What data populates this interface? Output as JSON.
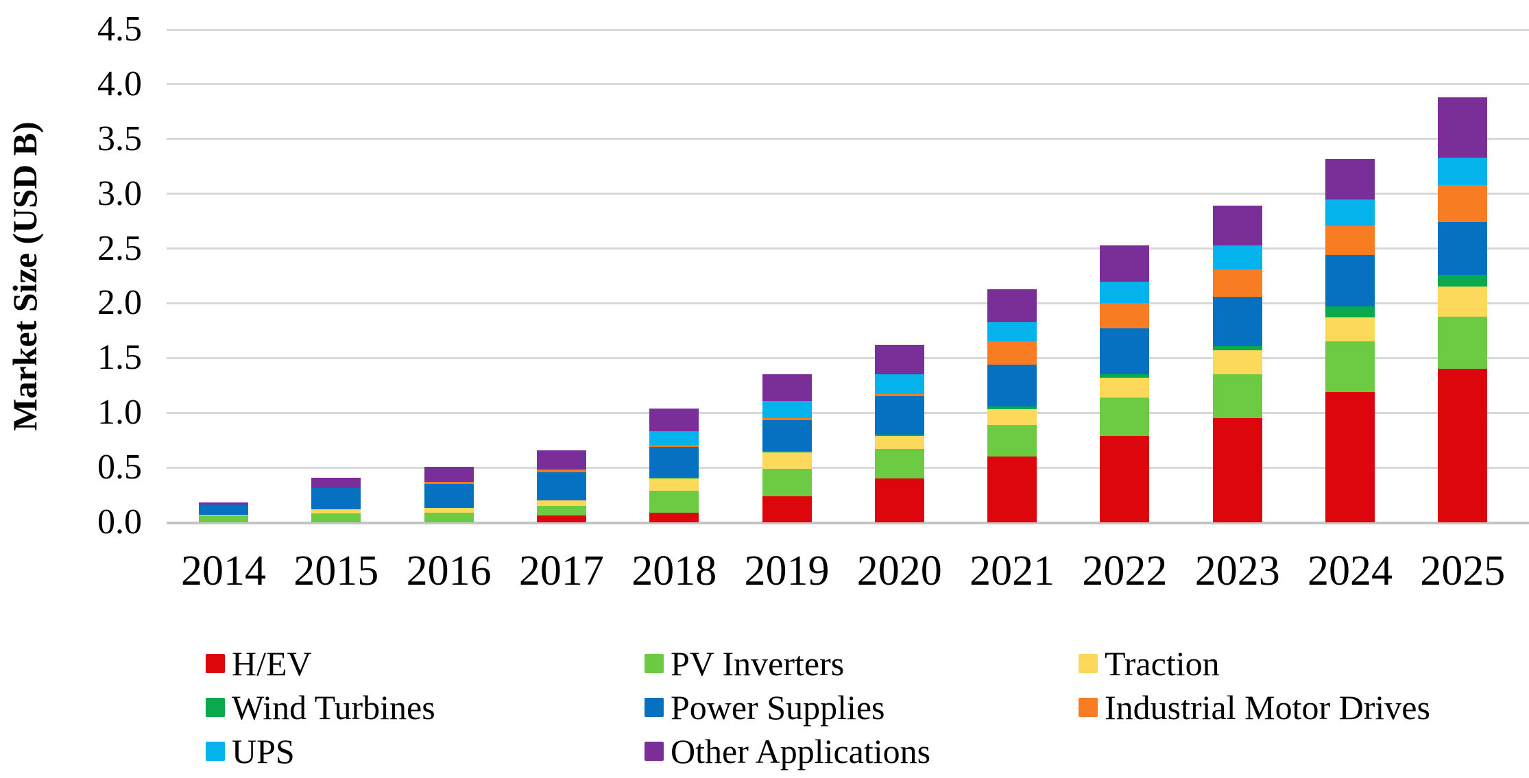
{
  "chart_data": {
    "type": "bar",
    "stacked": true,
    "title": "",
    "ylabel": "Market Size (USD B)",
    "xlabel": "",
    "units": "USD billions",
    "ylim": [
      0,
      4.5
    ],
    "ytick_step": 0.5,
    "yticks": [
      "4.5",
      "4.0",
      "3.5",
      "3.0",
      "2.5",
      "2.0",
      "1.5",
      "1.0",
      "0.5",
      "0.0"
    ],
    "grid": "horizontal",
    "legend_position": "bottom",
    "categories": [
      "2014",
      "2015",
      "2016",
      "2017",
      "2018",
      "2019",
      "2020",
      "2021",
      "2022",
      "2023",
      "2024",
      "2025"
    ],
    "series": [
      {
        "name": "H/EV",
        "color": "#DC060C",
        "values": [
          0.0,
          0.0,
          0.0,
          0.06,
          0.09,
          0.24,
          0.4,
          0.6,
          0.79,
          0.95,
          1.19,
          1.4
        ]
      },
      {
        "name": "PV Inverters",
        "color": "#6CCB43",
        "values": [
          0.06,
          0.08,
          0.09,
          0.09,
          0.2,
          0.25,
          0.27,
          0.29,
          0.35,
          0.4,
          0.46,
          0.48
        ]
      },
      {
        "name": "Traction",
        "color": "#FCD95B",
        "values": [
          0.01,
          0.04,
          0.04,
          0.05,
          0.11,
          0.15,
          0.12,
          0.14,
          0.18,
          0.22,
          0.22,
          0.27
        ]
      },
      {
        "name": "Wind Turbines",
        "color": "#0BA94E",
        "values": [
          0.0,
          0.0,
          0.0,
          0.0,
          0.01,
          0.01,
          0.01,
          0.03,
          0.03,
          0.04,
          0.1,
          0.11
        ]
      },
      {
        "name": "Power Supplies",
        "color": "#0771C1",
        "values": [
          0.09,
          0.19,
          0.22,
          0.26,
          0.28,
          0.28,
          0.35,
          0.38,
          0.42,
          0.45,
          0.47,
          0.48
        ]
      },
      {
        "name": "Industrial Motor Drives",
        "color": "#F87D22",
        "values": [
          0.0,
          0.0,
          0.02,
          0.02,
          0.01,
          0.02,
          0.02,
          0.21,
          0.23,
          0.25,
          0.27,
          0.34
        ]
      },
      {
        "name": "UPS",
        "color": "#04B2EC",
        "values": [
          0.0,
          0.0,
          0.0,
          0.0,
          0.13,
          0.16,
          0.18,
          0.18,
          0.2,
          0.22,
          0.24,
          0.25
        ]
      },
      {
        "name": "Other Applications",
        "color": "#7A2F98",
        "values": [
          0.02,
          0.1,
          0.14,
          0.18,
          0.21,
          0.24,
          0.27,
          0.3,
          0.33,
          0.36,
          0.37,
          0.55
        ]
      }
    ],
    "totals": [
      0.18,
      0.41,
      0.51,
      0.66,
      1.04,
      1.35,
      1.62,
      2.13,
      2.53,
      2.89,
      3.32,
      3.88
    ],
    "legend_order": [
      0,
      3,
      6,
      1,
      4,
      7,
      2,
      5
    ]
  },
  "colors": {
    "gridline": "#D8D8D8",
    "axis_line": "#C4C4C4",
    "text": "#000000",
    "background": "#FFFFFF"
  }
}
